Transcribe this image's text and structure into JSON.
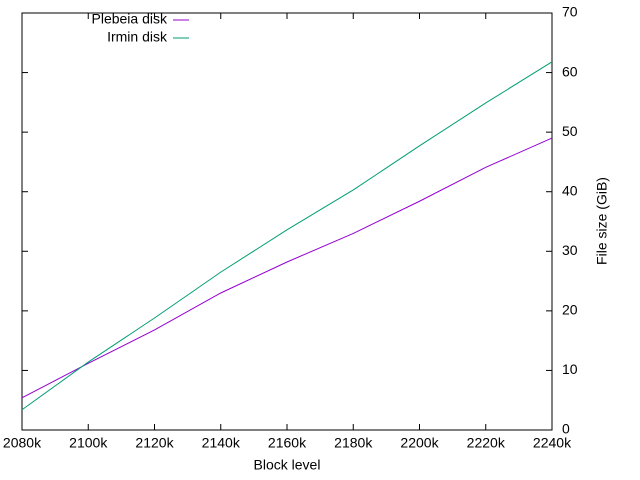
{
  "chart_data": {
    "type": "line",
    "xlabel": "Block level",
    "ylabel": "File size (GiB)",
    "x": [
      2080000,
      2100000,
      2120000,
      2140000,
      2160000,
      2180000,
      2200000,
      2220000,
      2240000
    ],
    "series": [
      {
        "name": "Plebeia disk",
        "color": "#9400d3",
        "values": [
          5.4,
          11.2,
          16.8,
          23.0,
          28.2,
          33.0,
          38.4,
          44.1,
          49.0
        ]
      },
      {
        "name": "Irmin disk",
        "color": "#009e73",
        "values": [
          3.4,
          11.4,
          18.8,
          26.5,
          33.6,
          40.3,
          47.7,
          54.9,
          61.8
        ]
      }
    ],
    "xlim": [
      2080000,
      2240000
    ],
    "xticks": [
      {
        "value": 2080000,
        "label": "2080k"
      },
      {
        "value": 2100000,
        "label": "2100k"
      },
      {
        "value": 2120000,
        "label": "2120k"
      },
      {
        "value": 2140000,
        "label": "2140k"
      },
      {
        "value": 2160000,
        "label": "2160k"
      },
      {
        "value": 2180000,
        "label": "2180k"
      },
      {
        "value": 2200000,
        "label": "2200k"
      },
      {
        "value": 2220000,
        "label": "2220k"
      },
      {
        "value": 2240000,
        "label": "2240k"
      }
    ],
    "ylim": [
      0,
      70
    ],
    "yticks": [
      0,
      10,
      20,
      30,
      40,
      50,
      60,
      70
    ],
    "legend": "top-left"
  }
}
